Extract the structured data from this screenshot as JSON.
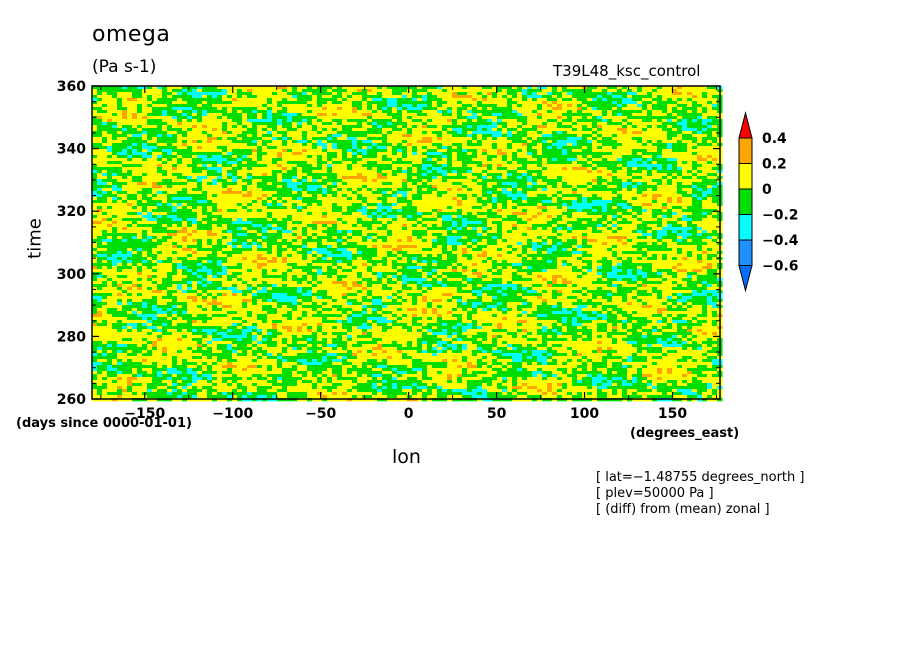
{
  "chart_data": {
    "type": "heatmap",
    "title": "omega",
    "units": "(Pa s-1)",
    "run_label": "T39L48_ksc_control",
    "ylabel": "time",
    "y_units": "(days since 0000-01-01)",
    "xlabel": "lon",
    "x_units": "(degrees_east)",
    "xlim": [
      -180,
      177
    ],
    "ylim": [
      260,
      360
    ],
    "x_ticks": [
      -150,
      -100,
      -50,
      0,
      50,
      100,
      150
    ],
    "y_ticks": [
      260,
      280,
      300,
      320,
      340,
      360
    ],
    "x_tick_labels": [
      "−150",
      "−100",
      "−50",
      "0",
      "50",
      "100",
      "150"
    ],
    "y_tick_labels": [
      "260",
      "280",
      "300",
      "320",
      "340",
      "360"
    ],
    "colorbar": {
      "levels": [
        -0.6,
        -0.4,
        -0.2,
        0,
        0.2,
        0.4
      ],
      "labels": [
        "−0.6",
        "−0.4",
        "−0.2",
        "0",
        "0.2",
        "0.4"
      ],
      "colors": [
        "#0070ff",
        "#1e90ff",
        "#00ffff",
        "#00dd00",
        "#ffff00",
        "#ffa500",
        "#ff0000"
      ]
    },
    "notes": [
      "[ lat=−1.48755 degrees_north ]",
      "[ plev=50000 Pa ]",
      "[ (diff) from (mean) zonal ]"
    ]
  }
}
